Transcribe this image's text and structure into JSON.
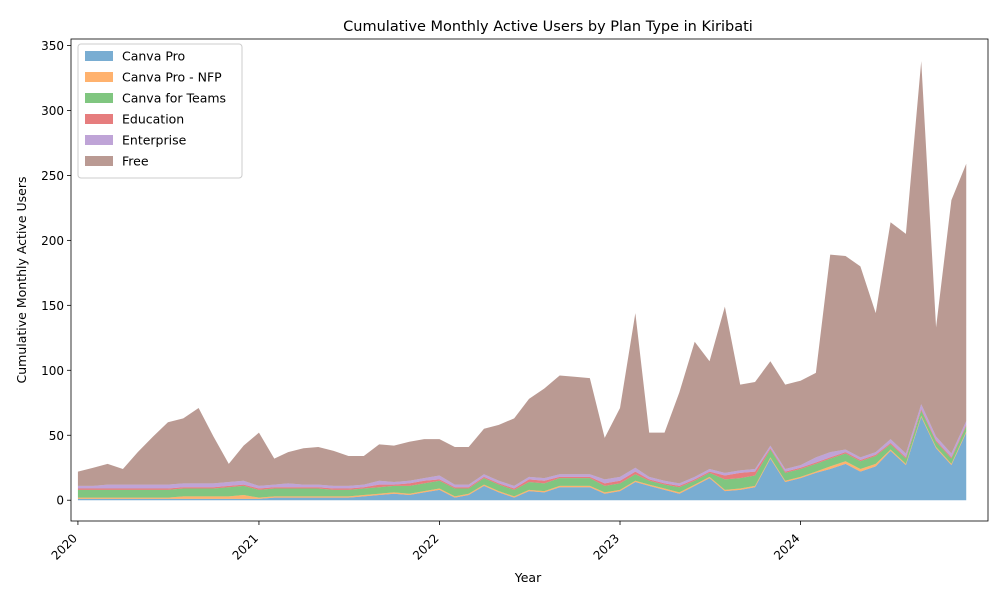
{
  "chart_data": {
    "type": "area",
    "stacked": true,
    "title": "Cumulative Monthly Active Users by Plan Type in Kiribati",
    "xlabel": "Year",
    "ylabel": "Cumulative Monthly Active Users",
    "ylim": [
      -16,
      355
    ],
    "xlim": [
      "2019-12-18",
      "2025-01-14"
    ],
    "yticks": [
      0,
      50,
      100,
      150,
      200,
      250,
      300,
      350
    ],
    "xticks": [
      {
        "date": "2020-01-01",
        "label": "2020"
      },
      {
        "date": "2021-01-01",
        "label": "2021"
      },
      {
        "date": "2022-01-01",
        "label": "2022"
      },
      {
        "date": "2023-01-01",
        "label": "2023"
      },
      {
        "date": "2024-01-01",
        "label": "2024"
      }
    ],
    "grid": false,
    "legend_position": "upper-left",
    "x": [
      "2020-01",
      "2020-02",
      "2020-03",
      "2020-04",
      "2020-05",
      "2020-06",
      "2020-07",
      "2020-08",
      "2020-09",
      "2020-10",
      "2020-11",
      "2020-12",
      "2021-01",
      "2021-02",
      "2021-03",
      "2021-04",
      "2021-05",
      "2021-06",
      "2021-07",
      "2021-08",
      "2021-09",
      "2021-10",
      "2021-11",
      "2021-12",
      "2022-01",
      "2022-02",
      "2022-03",
      "2022-04",
      "2022-05",
      "2022-06",
      "2022-07",
      "2022-08",
      "2022-09",
      "2022-10",
      "2022-11",
      "2022-12",
      "2023-01",
      "2023-02",
      "2023-03",
      "2023-04",
      "2023-05",
      "2023-06",
      "2023-07",
      "2023-08",
      "2023-09",
      "2023-10",
      "2023-11",
      "2023-12",
      "2024-01",
      "2024-02",
      "2024-03",
      "2024-04",
      "2024-05",
      "2024-06",
      "2024-07",
      "2024-08",
      "2024-09",
      "2024-10",
      "2024-11",
      "2024-12"
    ],
    "series": [
      {
        "name": "Canva Pro",
        "color": "#1f77b4",
        "values": [
          1,
          1,
          1,
          1,
          1,
          1,
          1,
          1,
          1,
          1,
          1,
          1,
          1,
          2,
          2,
          2,
          2,
          2,
          2,
          3,
          4,
          5,
          4,
          6,
          8,
          2,
          4,
          11,
          6,
          2,
          7,
          6,
          10,
          10,
          10,
          5,
          7,
          14,
          11,
          8,
          5,
          11,
          17,
          7,
          8,
          10,
          32,
          14,
          17,
          21,
          24,
          28,
          22,
          26,
          38,
          27,
          64,
          40,
          27,
          52
        ]
      },
      {
        "name": "Canva Pro - NFP",
        "color": "#ff7f0e",
        "values": [
          1,
          1,
          1,
          1,
          1,
          1,
          1,
          2,
          2,
          2,
          2,
          3,
          1,
          1,
          1,
          1,
          1,
          1,
          1,
          1,
          1,
          1,
          1,
          1,
          1,
          1,
          1,
          1,
          1,
          1,
          1,
          1,
          1,
          1,
          1,
          1,
          1,
          1,
          1,
          1,
          1,
          1,
          1,
          1,
          1,
          1,
          1,
          1,
          1,
          1,
          2,
          2,
          2,
          2,
          1,
          1,
          1,
          1,
          1,
          1
        ]
      },
      {
        "name": "Canva for Teams",
        "color": "#2ca02c",
        "values": [
          6,
          6,
          6,
          6,
          6,
          6,
          6,
          6,
          6,
          6,
          7,
          7,
          6,
          6,
          6,
          6,
          6,
          5,
          5,
          5,
          5,
          5,
          6,
          6,
          6,
          6,
          4,
          5,
          5,
          5,
          6,
          6,
          6,
          6,
          6,
          5,
          5,
          5,
          3,
          3,
          4,
          3,
          3,
          8,
          8,
          8,
          6,
          6,
          6,
          6,
          6,
          6,
          6,
          6,
          4,
          4,
          4,
          4,
          4,
          4
        ]
      },
      {
        "name": "Education",
        "color": "#d62728",
        "values": [
          1,
          1,
          1,
          1,
          1,
          1,
          1,
          1,
          1,
          1,
          1,
          1,
          1,
          1,
          1,
          1,
          1,
          1,
          1,
          1,
          2,
          1,
          2,
          2,
          1,
          1,
          1,
          1,
          1,
          1,
          2,
          2,
          1,
          1,
          1,
          2,
          2,
          2,
          1,
          1,
          1,
          1,
          1,
          3,
          4,
          3,
          1,
          1,
          1,
          1,
          1,
          1,
          1,
          1,
          1,
          1,
          1,
          1,
          1,
          1
        ]
      },
      {
        "name": "Enterprise",
        "color": "#9467bd",
        "values": [
          2,
          2,
          3,
          3,
          3,
          3,
          3,
          3,
          3,
          3,
          3,
          3,
          2,
          2,
          3,
          2,
          2,
          2,
          2,
          2,
          3,
          2,
          2,
          2,
          3,
          2,
          2,
          2,
          2,
          2,
          2,
          2,
          2,
          2,
          2,
          3,
          3,
          3,
          2,
          2,
          2,
          2,
          2,
          2,
          2,
          2,
          2,
          2,
          2,
          4,
          4,
          2,
          2,
          2,
          3,
          3,
          4,
          3,
          3,
          3
        ]
      },
      {
        "name": "Free",
        "color": "#8c564b",
        "values": [
          11,
          14,
          16,
          12,
          25,
          37,
          48,
          50,
          58,
          36,
          14,
          27,
          41,
          20,
          24,
          28,
          29,
          27,
          23,
          22,
          28,
          28,
          30,
          30,
          28,
          29,
          29,
          35,
          43,
          52,
          60,
          69,
          76,
          75,
          74,
          32,
          53,
          119,
          34,
          37,
          70,
          104,
          83,
          128,
          66,
          67,
          65,
          65,
          65,
          65,
          152,
          149,
          147,
          107,
          167,
          169,
          264,
          84,
          195,
          198
        ]
      }
    ]
  }
}
